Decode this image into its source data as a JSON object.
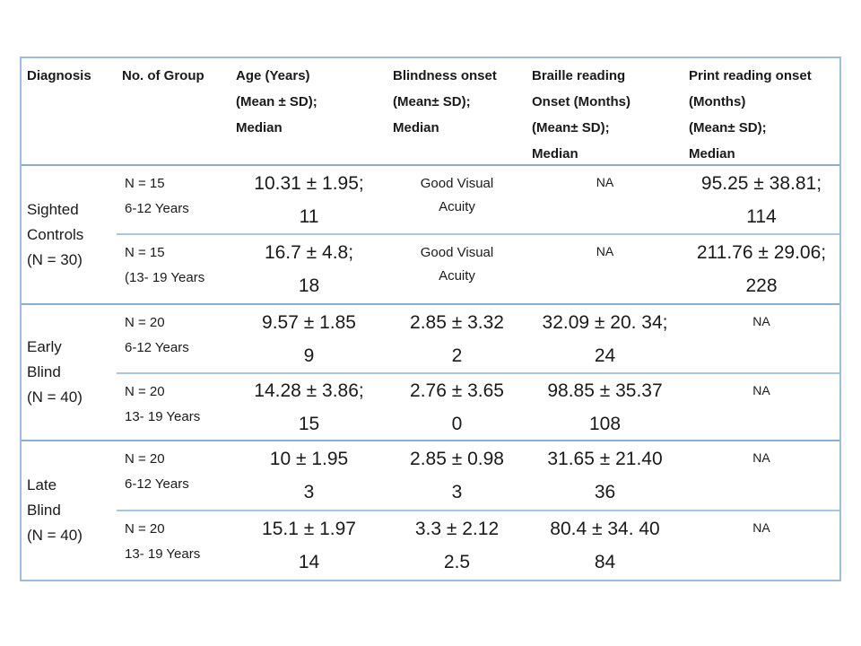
{
  "table": {
    "colors": {
      "line-strong": "#8cadcc",
      "line-light": "#a9c6e0",
      "line-outer": "#9cbcd9"
    },
    "header": {
      "diagnosis": "Diagnosis",
      "group": "No. of Group",
      "age": "Age (Years)\n(Mean ± SD);\nMedian",
      "blindness": "Blindness onset\n(Mean± SD);\nMedian",
      "braille": "Braille reading\nOnset (Months)\n(Mean± SD);\nMedian",
      "print": "Print reading onset\n(Months)\n(Mean± SD);\nMedian"
    },
    "groups": [
      {
        "diagnosis": "Sighted\nControls\n(N = 30)",
        "rows": [
          {
            "group": "N = 15\n6-12 Years",
            "age": "10.31 ± 1.95;\n11",
            "blindness": "Good Visual\nAcuity",
            "braille": "NA",
            "print": "95.25 ± 38.81;\n114"
          },
          {
            "group": "N = 15\n(13- 19 Years",
            "age": "16.7 ± 4.8;\n18",
            "blindness": "Good Visual\nAcuity",
            "braille": "NA",
            "print": "211.76 ± 29.06;\n228"
          }
        ]
      },
      {
        "diagnosis": "Early\nBlind\n(N = 40)",
        "rows": [
          {
            "group": "N = 20\n6-12 Years",
            "age": "9.57 ± 1.85\n9",
            "blindness": "2.85 ± 3.32\n2",
            "braille": "32.09 ± 20. 34;\n24",
            "print": "NA"
          },
          {
            "group": "N = 20\n13- 19 Years",
            "age": "14.28 ± 3.86;\n15",
            "blindness": "2.76 ± 3.65\n0",
            "braille": "98.85 ± 35.37\n108",
            "print": "NA"
          }
        ]
      },
      {
        "diagnosis": "Late\nBlind\n(N = 40)",
        "rows": [
          {
            "group": "N = 20\n6-12 Years",
            "age": "10 ± 1.95\n3",
            "blindness": "2.85 ± 0.98\n3",
            "braille": "31.65 ± 21.40\n36",
            "print": "NA"
          },
          {
            "group": "N = 20\n13- 19 Years",
            "age": "15.1 ± 1.97\n14",
            "blindness": "3.3 ± 2.12\n2.5",
            "braille": "80.4 ± 34. 40\n84",
            "print": "NA"
          }
        ]
      }
    ]
  }
}
